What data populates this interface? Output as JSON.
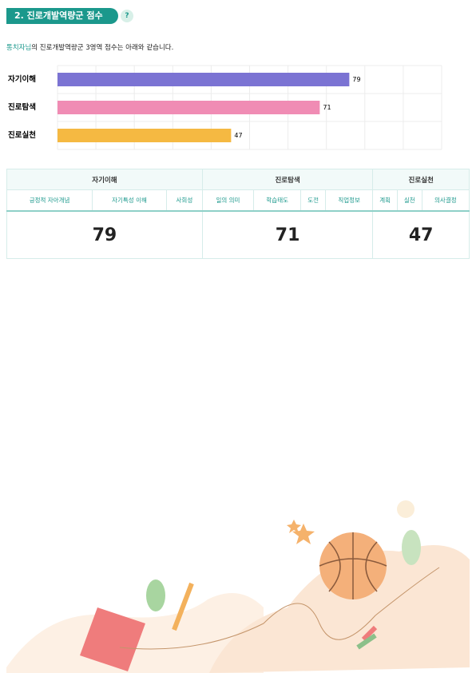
{
  "header": {
    "title": "2. 진로개발역량군 점수",
    "help": "?"
  },
  "intro": {
    "name": "통치자님",
    "text": "의 진로개발역량군 3영역 점수는 아래와 같습니다."
  },
  "chart_data": {
    "type": "bar",
    "orientation": "horizontal",
    "categories": [
      "자기이해",
      "진로탐색",
      "진로실천"
    ],
    "values": [
      79,
      71,
      47
    ],
    "colors": [
      "#7b73d3",
      "#f08cb4",
      "#f5b942"
    ],
    "xlim": [
      0,
      104
    ],
    "grid": true
  },
  "table": {
    "groups": [
      {
        "name": "자기이해",
        "items": [
          "긍정적 자아개념",
          "자기특성 이해",
          "사회성"
        ],
        "score": 79
      },
      {
        "name": "진로탐색",
        "items": [
          "일의 의미",
          "학습태도",
          "도전",
          "직업정보"
        ],
        "score": 71
      },
      {
        "name": "진로실천",
        "items": [
          "계획",
          "실천",
          "의사결정"
        ],
        "score": 47
      }
    ]
  }
}
